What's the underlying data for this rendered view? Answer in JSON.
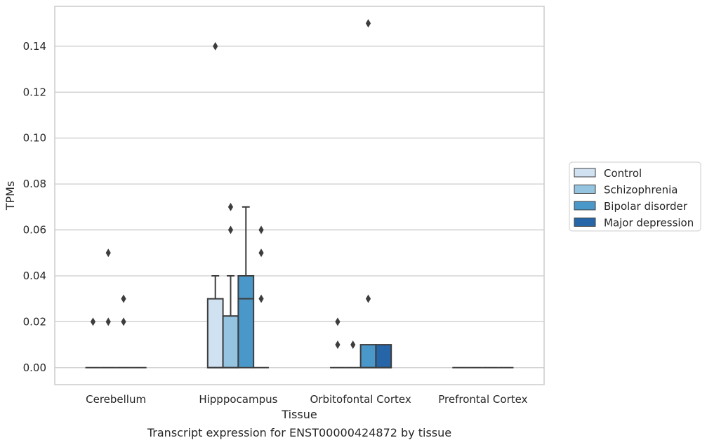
{
  "chart_data": {
    "type": "box",
    "title": "Transcript expression for ENST00000424872 by tissue",
    "xlabel": "Tissue",
    "ylabel": "TPMs",
    "categories": [
      "Cerebellum",
      "Hipppocampus",
      "Orbitofontal Cortex",
      "Prefrontal Cortex"
    ],
    "ylim": [
      -0.0074,
      0.1574
    ],
    "yticks": [
      "0.00",
      "0.02",
      "0.04",
      "0.06",
      "0.08",
      "0.10",
      "0.12",
      "0.14"
    ],
    "grid": "horizontal",
    "legend_position": "right",
    "series": [
      {
        "name": "Control",
        "color": "#d0e1f2",
        "boxes": [
          {
            "q1": 0,
            "median": 0,
            "q3": 0,
            "whisker_low": 0,
            "whisker_high": 0,
            "outliers": [
              0.02
            ]
          },
          {
            "q1": 0,
            "median": 0,
            "q3": 0.03,
            "whisker_low": 0,
            "whisker_high": 0.04,
            "outliers": [
              0.14
            ]
          },
          {
            "q1": 0,
            "median": 0,
            "q3": 0,
            "whisker_low": 0,
            "whisker_high": 0,
            "outliers": [
              0.01,
              0.02
            ]
          },
          {
            "q1": 0,
            "median": 0,
            "q3": 0,
            "whisker_low": 0,
            "whisker_high": 0,
            "outliers": []
          }
        ]
      },
      {
        "name": "Schizophrenia",
        "color": "#94c4df",
        "boxes": [
          {
            "q1": 0,
            "median": 0,
            "q3": 0,
            "whisker_low": 0,
            "whisker_high": 0,
            "outliers": [
              0.02,
              0.05
            ]
          },
          {
            "q1": 0,
            "median": 0,
            "q3": 0.0225,
            "whisker_low": 0,
            "whisker_high": 0.04,
            "outliers": [
              0.06,
              0.07
            ]
          },
          {
            "q1": 0,
            "median": 0,
            "q3": 0,
            "whisker_low": 0,
            "whisker_high": 0,
            "outliers": [
              0.01
            ]
          },
          {
            "q1": 0,
            "median": 0,
            "q3": 0,
            "whisker_low": 0,
            "whisker_high": 0,
            "outliers": []
          }
        ]
      },
      {
        "name": "Bipolar disorder",
        "color": "#4a98c9",
        "boxes": [
          {
            "q1": 0,
            "median": 0,
            "q3": 0,
            "whisker_low": 0,
            "whisker_high": 0,
            "outliers": [
              0.02,
              0.03
            ]
          },
          {
            "q1": 0,
            "median": 0.03,
            "q3": 0.04,
            "whisker_low": 0,
            "whisker_high": 0.07,
            "outliers": []
          },
          {
            "q1": 0,
            "median": 0,
            "q3": 0.01,
            "whisker_low": 0,
            "whisker_high": 0.01,
            "outliers": [
              0.03,
              0.15
            ]
          },
          {
            "q1": 0,
            "median": 0,
            "q3": 0,
            "whisker_low": 0,
            "whisker_high": 0,
            "outliers": []
          }
        ]
      },
      {
        "name": "Major depression",
        "color": "#2666a8",
        "boxes": [
          {
            "q1": 0,
            "median": 0,
            "q3": 0,
            "whisker_low": 0,
            "whisker_high": 0,
            "outliers": []
          },
          {
            "q1": 0,
            "median": 0,
            "q3": 0,
            "whisker_low": 0,
            "whisker_high": 0,
            "outliers": [
              0.03,
              0.05,
              0.06
            ]
          },
          {
            "q1": 0,
            "median": 0,
            "q3": 0.01,
            "whisker_low": 0,
            "whisker_high": 0.01,
            "outliers": []
          },
          {
            "q1": 0,
            "median": 0,
            "q3": 0,
            "whisker_low": 0,
            "whisker_high": 0,
            "outliers": []
          }
        ]
      }
    ]
  }
}
